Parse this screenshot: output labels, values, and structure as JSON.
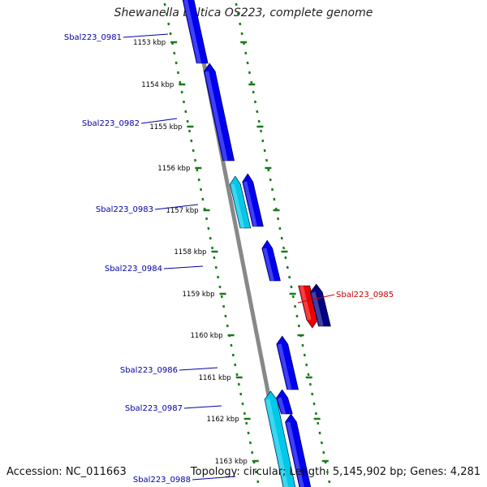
{
  "title": "Shewanella baltica OS223, complete genome",
  "accession": "Accession: NC_011663",
  "topology": "Topology: circular; Length: 5,145,902 bp; Genes: 4,281",
  "colors": {
    "backbone": "#888888",
    "tick": "#1a7a1a",
    "gene_blue": "#0000ee",
    "gene_cyan": "#00c8e8",
    "gene_red": "#ee0000",
    "gene_navy": "#000080",
    "label_blue": "#0000aa",
    "label_red": "#cc0000"
  },
  "kbp_labels": [
    "1153 kbp",
    "1154 kbp",
    "1155 kbp",
    "1156 kbp",
    "1157 kbp",
    "1158 kbp",
    "1159 kbp",
    "1160 kbp",
    "1161 kbp",
    "1162 kbp",
    "1163 kbp"
  ],
  "genes": [
    {
      "label": "Sbal223_0981",
      "color": "gene_blue",
      "strand": "inner"
    },
    {
      "label": "Sbal223_0982",
      "color": "gene_blue",
      "strand": "inner"
    },
    {
      "label": "Sbal223_0983",
      "color": "gene_cyan",
      "strand": "inner"
    },
    {
      "label": "",
      "color": "gene_blue",
      "strand": "inner"
    },
    {
      "label": "Sbal223_0984",
      "color": "gene_blue",
      "strand": "inner"
    },
    {
      "label": "Sbal223_0985",
      "color": "gene_red",
      "strand": "outer"
    },
    {
      "label": "",
      "color": "gene_navy",
      "strand": "outer"
    },
    {
      "label": "Sbal223_0986",
      "color": "gene_blue",
      "strand": "inner"
    },
    {
      "label": "Sbal223_0987",
      "color": "gene_blue",
      "strand": "inner"
    },
    {
      "label": "Sbal223_0988",
      "color": "gene_cyan",
      "strand": "inner"
    },
    {
      "label": "",
      "color": "gene_blue",
      "strand": "inner"
    }
  ]
}
